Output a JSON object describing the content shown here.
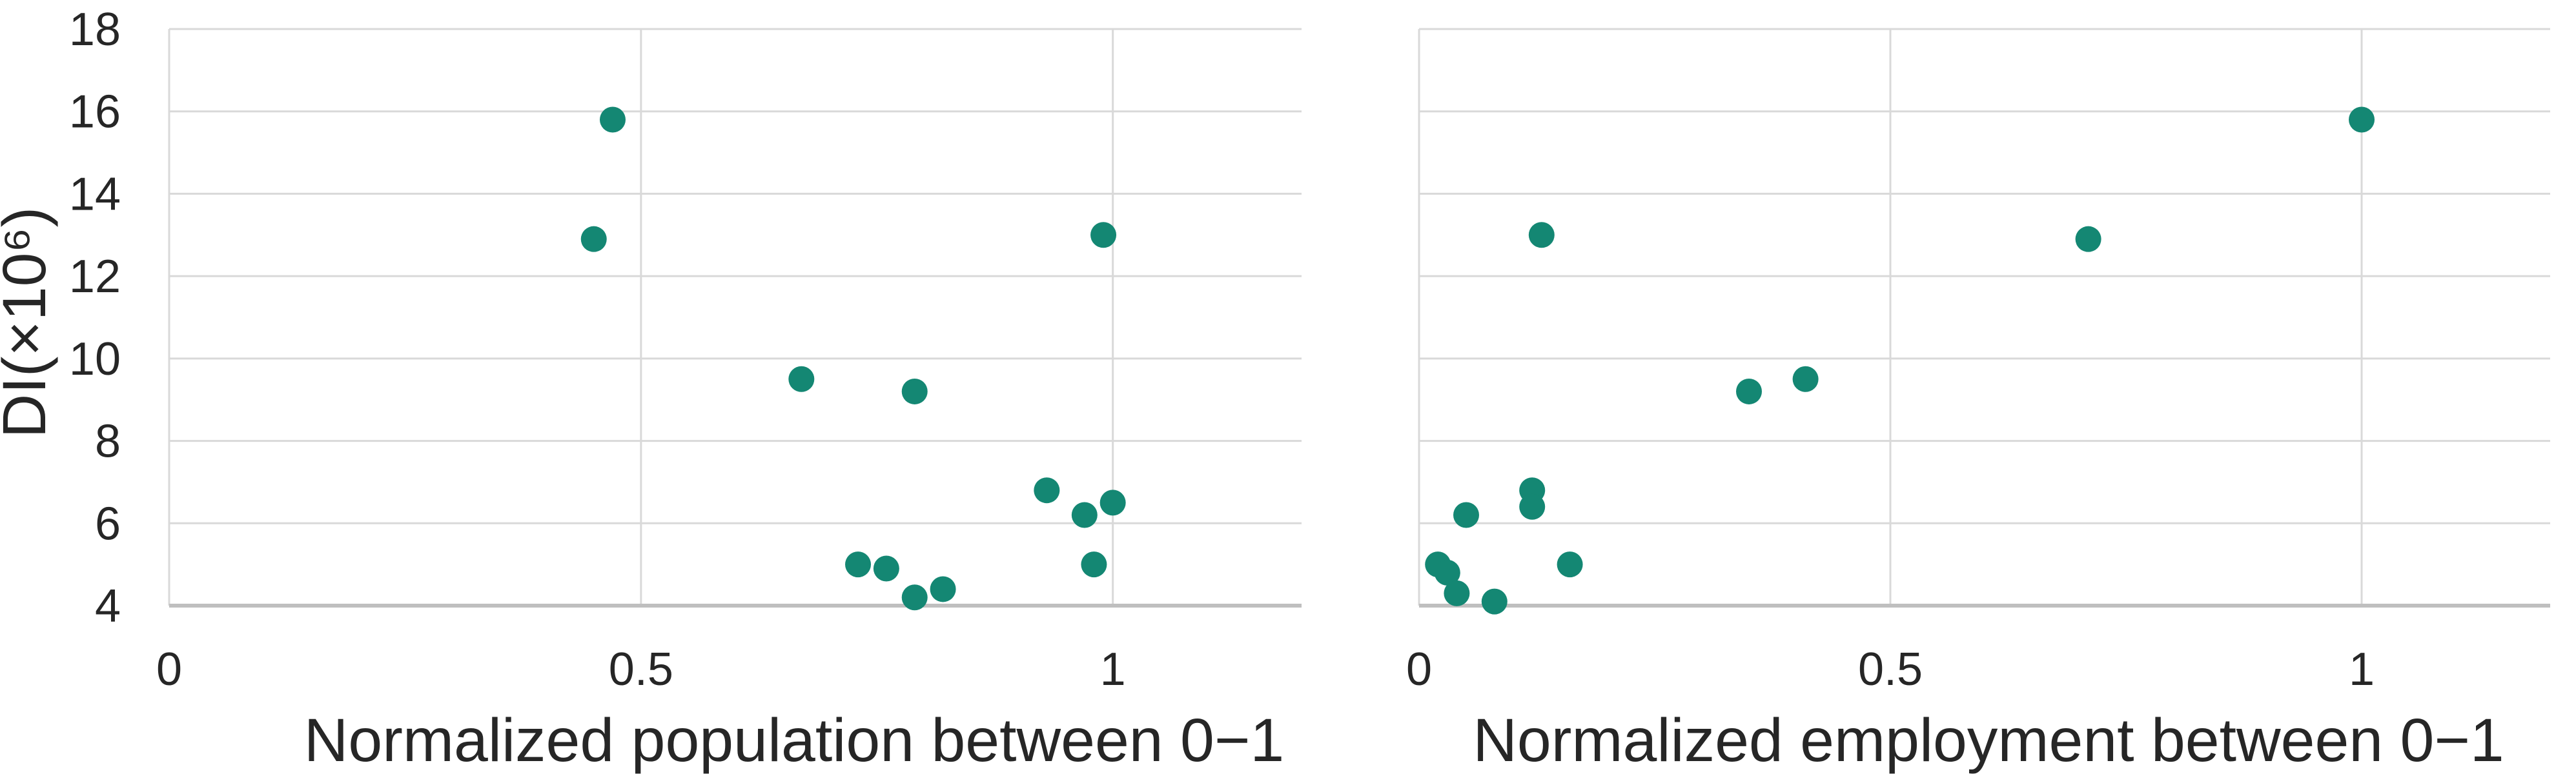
{
  "figure": {
    "description": "Two scatter plots sharing one DI y-axis",
    "background": "#ffffff"
  },
  "colors": {
    "marker": "#148773",
    "gridline": "#d9d9d9",
    "axis_line": "#bfbfbf",
    "text": "#262626"
  },
  "chart_data": [
    {
      "type": "scatter",
      "title": "",
      "xlabel": "Normalized population between 0−1",
      "ylabel": "DI(×10⁶)",
      "xlim": [
        0,
        1.2
      ],
      "ylim": [
        4,
        18
      ],
      "xticks": [
        0,
        0.5,
        1
      ],
      "yticks": [
        4,
        6,
        8,
        10,
        12,
        14,
        16,
        18
      ],
      "grid": true,
      "legend": "none",
      "points": [
        [
          0.47,
          15.8
        ],
        [
          0.45,
          12.9
        ],
        [
          0.99,
          13.0
        ],
        [
          0.67,
          9.5
        ],
        [
          0.79,
          9.2
        ],
        [
          0.93,
          6.8
        ],
        [
          1.0,
          6.5
        ],
        [
          0.97,
          6.2
        ],
        [
          0.73,
          5.0
        ],
        [
          0.76,
          4.9
        ],
        [
          0.98,
          5.0
        ],
        [
          0.82,
          4.4
        ],
        [
          0.79,
          4.2
        ]
      ]
    },
    {
      "type": "scatter",
      "title": "",
      "xlabel": "Normalized employment between 0−1",
      "ylabel": "",
      "xlim": [
        0,
        1.2
      ],
      "ylim": [
        4,
        18
      ],
      "xticks": [
        0,
        0.5,
        1
      ],
      "yticks": [
        4,
        6,
        8,
        10,
        12,
        14,
        16,
        18
      ],
      "grid": true,
      "legend": "none",
      "points": [
        [
          1.0,
          15.8
        ],
        [
          0.13,
          13.0
        ],
        [
          0.71,
          12.9
        ],
        [
          0.41,
          9.5
        ],
        [
          0.35,
          9.2
        ],
        [
          0.12,
          6.8
        ],
        [
          0.12,
          6.4
        ],
        [
          0.05,
          6.2
        ],
        [
          0.16,
          5.0
        ],
        [
          0.02,
          5.0
        ],
        [
          0.03,
          4.8
        ],
        [
          0.04,
          4.3
        ],
        [
          0.08,
          4.1
        ]
      ]
    }
  ]
}
